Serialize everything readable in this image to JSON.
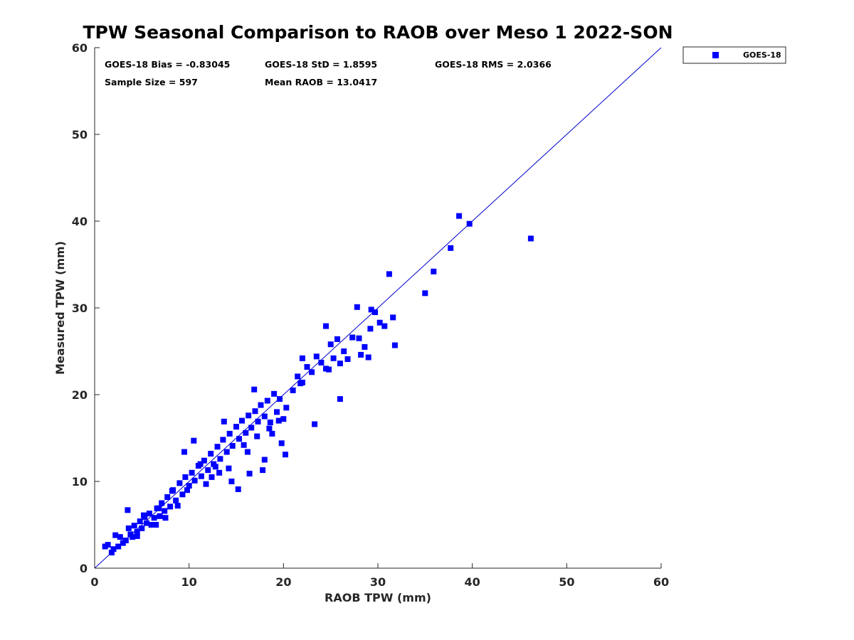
{
  "chart_data": {
    "type": "scatter",
    "title": "TPW Seasonal Comparison to RAOB over Meso 1 2022-SON",
    "xlabel": "RAOB TPW (mm)",
    "ylabel": "Measured TPW (mm)",
    "xlim": [
      0,
      60
    ],
    "ylim": [
      0,
      60
    ],
    "xticks": [
      "0",
      "10",
      "20",
      "30",
      "40",
      "50",
      "60"
    ],
    "yticks": [
      "0",
      "10",
      "20",
      "30",
      "40",
      "50",
      "60"
    ],
    "grid": false,
    "legend_position": "outside-top-right",
    "colors": {
      "series": "#0000ff",
      "line": "#0000cc",
      "axis": "#262626"
    },
    "annotations": [
      "GOES-18 Bias = -0.83045",
      "GOES-18 StD = 1.8595",
      "GOES-18 RMS = 2.0366",
      "Sample Size = 597",
      "Mean RAOB = 13.0417"
    ],
    "reference_line": {
      "x": [
        0,
        60
      ],
      "y": [
        0,
        60
      ]
    },
    "series": [
      {
        "name": "GOES-18",
        "marker": "square",
        "x": [
          1.1,
          1.4,
          1.8,
          2.0,
          2.2,
          2.5,
          2.7,
          3.0,
          3.3,
          3.6,
          3.8,
          4.0,
          4.2,
          4.5,
          4.8,
          5.0,
          5.2,
          5.5,
          5.8,
          6.0,
          6.3,
          6.6,
          6.9,
          7.1,
          7.4,
          7.7,
          8.0,
          8.3,
          8.6,
          9.0,
          9.3,
          9.6,
          10.0,
          10.3,
          10.6,
          11.0,
          11.3,
          11.6,
          12.0,
          12.3,
          12.6,
          13.0,
          13.3,
          13.6,
          14.0,
          14.3,
          14.6,
          15.0,
          15.3,
          15.6,
          16.0,
          16.3,
          16.6,
          17.0,
          17.3,
          17.6,
          18.0,
          18.3,
          18.6,
          19.0,
          19.3,
          19.6,
          20.0,
          20.3,
          21.0,
          21.5,
          22.0,
          22.5,
          23.0,
          23.5,
          24.0,
          24.5,
          25.0,
          25.3,
          25.7,
          26.0,
          26.4,
          26.8,
          27.3,
          27.8,
          28.2,
          28.6,
          29.0,
          29.3,
          29.7,
          30.2,
          30.7,
          31.2,
          31.6,
          31.8,
          35.0,
          35.9,
          37.7,
          38.6,
          39.7,
          46.2,
          3.5,
          4.5,
          6.5,
          7.5,
          8.8,
          9.5,
          10.5,
          11.8,
          12.4,
          13.2,
          14.2,
          15.2,
          16.4,
          16.9,
          17.8,
          18.8,
          19.8,
          20.2,
          22.0,
          23.3,
          24.5,
          26.0,
          28.0,
          29.2,
          5.3,
          6.8,
          8.2,
          9.8,
          11.2,
          12.8,
          14.5,
          15.8,
          17.2,
          18.5,
          19.5,
          13.7,
          16.2,
          18.0,
          21.8,
          24.8
        ],
        "y": [
          2.5,
          2.7,
          1.8,
          2.2,
          3.8,
          2.5,
          3.6,
          2.9,
          3.2,
          4.6,
          3.9,
          3.6,
          4.9,
          4.2,
          5.4,
          4.6,
          6.1,
          5.2,
          6.3,
          5.0,
          5.8,
          6.9,
          6.0,
          7.5,
          6.6,
          8.2,
          7.1,
          9.0,
          7.8,
          9.8,
          8.5,
          10.5,
          9.5,
          11.0,
          10.1,
          11.8,
          10.6,
          12.4,
          11.3,
          13.2,
          12.0,
          14.0,
          12.6,
          14.8,
          13.4,
          15.5,
          14.1,
          16.3,
          14.9,
          17.0,
          15.6,
          17.6,
          16.2,
          18.1,
          16.9,
          18.8,
          17.5,
          19.3,
          16.8,
          20.1,
          18.0,
          19.5,
          17.2,
          18.5,
          20.5,
          22.1,
          21.4,
          23.2,
          22.6,
          24.4,
          23.7,
          23.0,
          25.8,
          24.2,
          26.4,
          23.6,
          25.0,
          24.1,
          26.6,
          30.1,
          24.6,
          25.5,
          24.3,
          29.8,
          29.5,
          28.3,
          27.9,
          33.9,
          28.9,
          25.7,
          31.7,
          34.2,
          36.9,
          40.6,
          39.7,
          38.0,
          6.7,
          3.7,
          5.0,
          5.8,
          7.2,
          13.4,
          14.7,
          9.7,
          10.5,
          11.0,
          11.5,
          9.1,
          10.9,
          20.6,
          11.3,
          15.5,
          14.4,
          13.1,
          24.2,
          16.6,
          27.9,
          19.5,
          26.5,
          27.6,
          5.9,
          6.9,
          8.9,
          9.0,
          12.0,
          11.7,
          10.0,
          14.2,
          15.2,
          16.1,
          17.0,
          16.9,
          13.4,
          12.5,
          21.3,
          22.9
        ]
      }
    ]
  }
}
